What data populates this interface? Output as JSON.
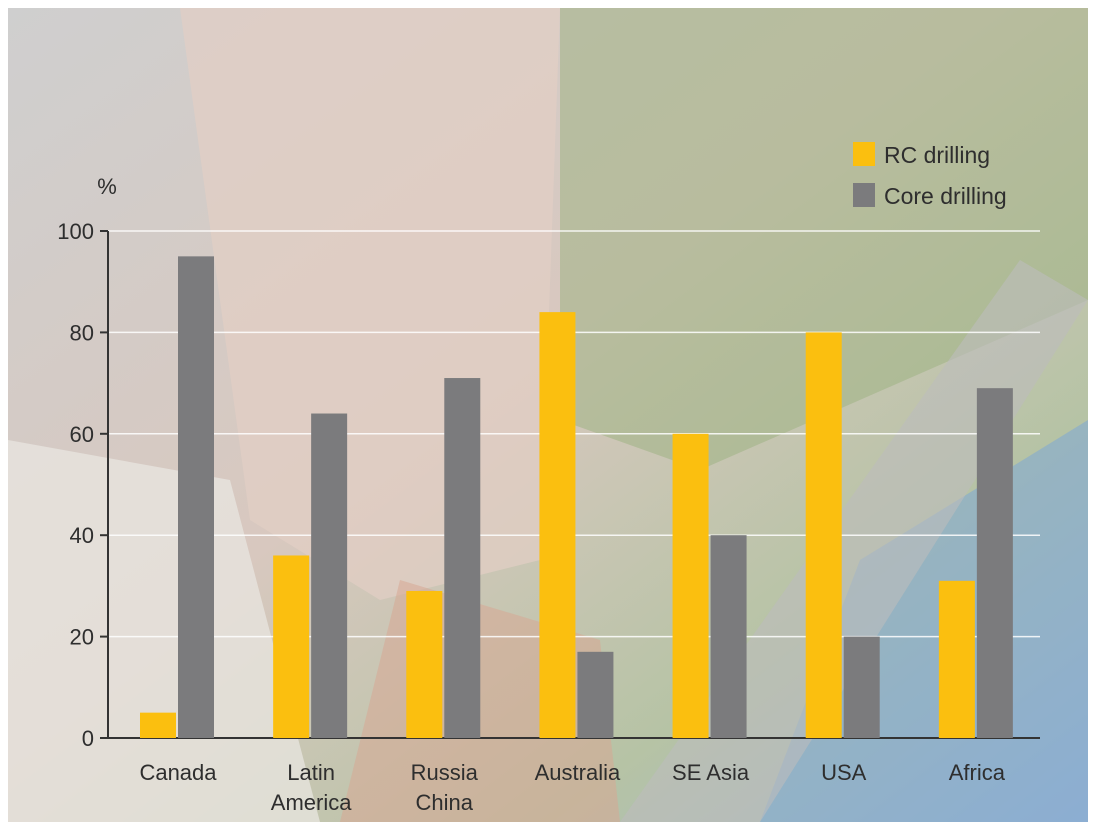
{
  "chart_data": {
    "type": "bar",
    "ylabel": "%",
    "ylim": [
      0,
      100
    ],
    "yticks": [
      0,
      20,
      40,
      60,
      80,
      100
    ],
    "grid": true,
    "legend_position": "top-right",
    "categories": [
      [
        "Canada"
      ],
      [
        "Latin",
        "America"
      ],
      [
        "Russia",
        "China"
      ],
      [
        "Australia"
      ],
      [
        "SE Asia"
      ],
      [
        "USA"
      ],
      [
        "Africa"
      ]
    ],
    "series": [
      {
        "name": "RC drilling",
        "color": "#fbbf0f",
        "values": [
          5,
          36,
          29,
          84,
          60,
          80,
          31
        ]
      },
      {
        "name": "Core drilling",
        "color": "#7b7b7d",
        "values": [
          95,
          64,
          71,
          17,
          40,
          20,
          69
        ]
      }
    ]
  },
  "colors": {
    "background_photo": [
      "#d9d8d2",
      "#c9b9ae",
      "#a9b890",
      "#8fb0cf"
    ],
    "axis": "#333333",
    "text": "#2e2e2e",
    "gridline": "#ffffff"
  }
}
